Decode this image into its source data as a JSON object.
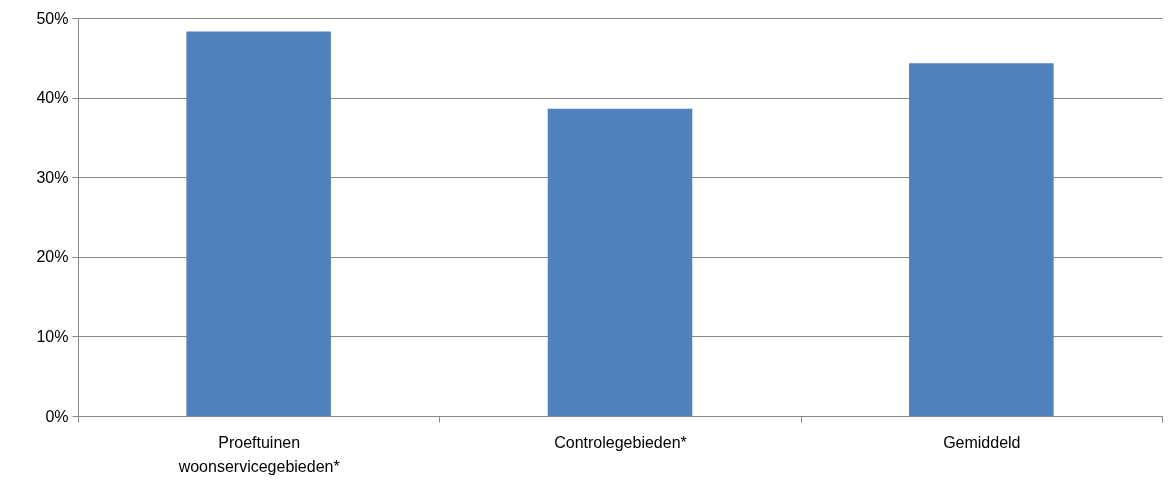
{
  "chart_data": {
    "type": "bar",
    "categories": [
      "Proeftuinen woonservicegebieden*",
      "Controlegebieden*",
      "Gemiddeld"
    ],
    "values": [
      48.3,
      38.6,
      44.3
    ],
    "color": "#4f81bd",
    "ylim": [
      0,
      50
    ],
    "yticks": [
      {
        "value": 0,
        "label": "0%"
      },
      {
        "value": 10,
        "label": "10%"
      },
      {
        "value": 20,
        "label": "20%"
      },
      {
        "value": 30,
        "label": "30%"
      },
      {
        "value": 40,
        "label": "40%"
      },
      {
        "value": 50,
        "label": "50%"
      }
    ],
    "grid": "y"
  }
}
